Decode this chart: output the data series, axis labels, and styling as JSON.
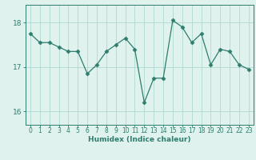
{
  "x": [
    0,
    1,
    2,
    3,
    4,
    5,
    6,
    7,
    8,
    9,
    10,
    11,
    12,
    13,
    14,
    15,
    16,
    17,
    18,
    19,
    20,
    21,
    22,
    23
  ],
  "y": [
    17.75,
    17.55,
    17.55,
    17.45,
    17.35,
    17.35,
    16.85,
    17.05,
    17.35,
    17.5,
    17.65,
    17.4,
    16.2,
    16.75,
    16.75,
    18.05,
    17.9,
    17.55,
    17.75,
    17.05,
    17.4,
    17.35,
    17.05,
    16.95
  ],
  "line_color": "#2e7d6e",
  "marker": "D",
  "marker_size": 2.5,
  "bg_color": "#dff2ee",
  "grid_color": "#b0d8d0",
  "xlabel": "Humidex (Indice chaleur)",
  "ylim": [
    15.7,
    18.4
  ],
  "yticks": [
    16,
    17,
    18
  ],
  "xticks": [
    0,
    1,
    2,
    3,
    4,
    5,
    6,
    7,
    8,
    9,
    10,
    11,
    12,
    13,
    14,
    15,
    16,
    17,
    18,
    19,
    20,
    21,
    22,
    23
  ],
  "tick_color": "#2e7d6e",
  "label_color": "#2e7d6e",
  "xlabel_fontsize": 6.5,
  "xtick_fontsize": 5.5,
  "ytick_fontsize": 6.5
}
